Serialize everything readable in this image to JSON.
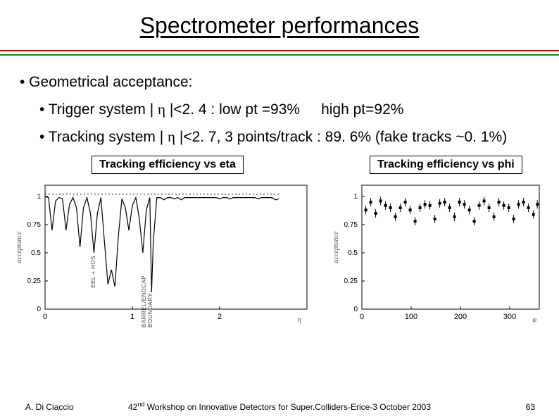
{
  "title": "Spectrometer performances",
  "bullets": {
    "lvl1": "• Geometrical acceptance:",
    "lvl2a_pre": "• Trigger system | ",
    "lvl2a_eta": "η",
    "lvl2a_mid": " |<2. 4   :  low pt =93%",
    "lvl2a_high": "high pt=92%",
    "lvl2b_pre": "• Tracking system | ",
    "lvl2b_eta": "η",
    "lvl2b_post": " |<2. 7,  3 points/track  :  89. 6%  (fake tracks ~0. 1%)"
  },
  "caption_left": "Tracking efficiency vs eta",
  "caption_right": "Tracking efficiency vs phi",
  "chart_left": {
    "type": "line",
    "ylabel_rot": "acceptance",
    "xaxis_label": "η",
    "xlim": [
      0,
      3
    ],
    "ylim": [
      0,
      1.1
    ],
    "yticks": [
      0,
      0.25,
      0.5,
      0.75,
      1
    ],
    "xticks": [
      0,
      1,
      2
    ],
    "annot1": "EEL + HOS",
    "annot2": "BARREL/ENDCAP BOUNDARY",
    "series_color": "#000000",
    "series_top_dashed": true,
    "background_color": "#ffffff",
    "data_solid": [
      [
        0.0,
        1.0
      ],
      [
        0.04,
        0.99
      ],
      [
        0.08,
        0.7
      ],
      [
        0.12,
        0.96
      ],
      [
        0.16,
        0.99
      ],
      [
        0.2,
        0.98
      ],
      [
        0.24,
        0.7
      ],
      [
        0.28,
        0.93
      ],
      [
        0.32,
        0.99
      ],
      [
        0.36,
        0.9
      ],
      [
        0.4,
        0.55
      ],
      [
        0.44,
        0.9
      ],
      [
        0.48,
        0.99
      ],
      [
        0.52,
        0.85
      ],
      [
        0.56,
        0.5
      ],
      [
        0.6,
        0.85
      ],
      [
        0.64,
        0.99
      ],
      [
        0.68,
        0.6
      ],
      [
        0.72,
        0.22
      ],
      [
        0.76,
        0.35
      ],
      [
        0.8,
        0.2
      ],
      [
        0.84,
        0.65
      ],
      [
        0.88,
        0.98
      ],
      [
        0.92,
        0.9
      ],
      [
        0.96,
        0.7
      ],
      [
        1.0,
        0.92
      ],
      [
        1.04,
        0.99
      ],
      [
        1.08,
        0.8
      ],
      [
        1.12,
        0.5
      ],
      [
        1.16,
        0.88
      ],
      [
        1.2,
        0.99
      ],
      [
        1.22,
        0.15
      ],
      [
        1.24,
        0.6
      ],
      [
        1.28,
        0.99
      ],
      [
        1.32,
        0.99
      ],
      [
        1.36,
        0.97
      ],
      [
        1.4,
        0.99
      ],
      [
        1.44,
        0.99
      ],
      [
        1.48,
        0.98
      ],
      [
        1.52,
        0.99
      ],
      [
        1.56,
        0.97
      ],
      [
        1.6,
        0.99
      ],
      [
        1.64,
        0.99
      ],
      [
        1.68,
        0.99
      ],
      [
        1.72,
        0.99
      ],
      [
        1.76,
        0.99
      ],
      [
        1.8,
        0.99
      ],
      [
        1.84,
        0.99
      ],
      [
        1.88,
        0.99
      ],
      [
        1.92,
        0.99
      ],
      [
        1.96,
        0.99
      ],
      [
        2.0,
        0.98
      ],
      [
        2.04,
        0.99
      ],
      [
        2.08,
        0.99
      ],
      [
        2.12,
        0.98
      ],
      [
        2.16,
        0.99
      ],
      [
        2.2,
        0.99
      ],
      [
        2.24,
        0.99
      ],
      [
        2.28,
        0.99
      ],
      [
        2.32,
        0.99
      ],
      [
        2.36,
        0.99
      ],
      [
        2.4,
        0.99
      ],
      [
        2.44,
        0.98
      ],
      [
        2.48,
        0.99
      ],
      [
        2.52,
        0.99
      ],
      [
        2.56,
        0.99
      ],
      [
        2.6,
        0.99
      ],
      [
        2.64,
        0.97
      ],
      [
        2.68,
        0.98
      ]
    ],
    "data_dotted_y": 1.02
  },
  "chart_right": {
    "type": "scatter",
    "ylabel_rot": "acceptance",
    "xaxis_label": "φ",
    "xlim": [
      0,
      360
    ],
    "ylim": [
      0,
      1.1
    ],
    "yticks": [
      0,
      0.25,
      0.5,
      0.75,
      1
    ],
    "xticks": [
      0,
      100,
      200,
      300
    ],
    "marker_color": "#000000",
    "background_color": "#ffffff",
    "points": [
      [
        8,
        0.88
      ],
      [
        18,
        0.95
      ],
      [
        28,
        0.85
      ],
      [
        38,
        0.96
      ],
      [
        48,
        0.92
      ],
      [
        58,
        0.9
      ],
      [
        68,
        0.82
      ],
      [
        78,
        0.9
      ],
      [
        88,
        0.95
      ],
      [
        98,
        0.88
      ],
      [
        108,
        0.78
      ],
      [
        118,
        0.9
      ],
      [
        128,
        0.93
      ],
      [
        138,
        0.92
      ],
      [
        148,
        0.8
      ],
      [
        158,
        0.94
      ],
      [
        168,
        0.95
      ],
      [
        178,
        0.9
      ],
      [
        188,
        0.82
      ],
      [
        198,
        0.95
      ],
      [
        208,
        0.93
      ],
      [
        218,
        0.88
      ],
      [
        228,
        0.78
      ],
      [
        238,
        0.92
      ],
      [
        248,
        0.96
      ],
      [
        258,
        0.9
      ],
      [
        268,
        0.82
      ],
      [
        278,
        0.95
      ],
      [
        288,
        0.92
      ],
      [
        298,
        0.9
      ],
      [
        308,
        0.8
      ],
      [
        318,
        0.93
      ],
      [
        328,
        0.95
      ],
      [
        338,
        0.9
      ],
      [
        348,
        0.84
      ],
      [
        356,
        0.93
      ]
    ]
  },
  "footer": {
    "author": "A. Di Ciaccio",
    "mid_pre": "42",
    "mid_sup": "nd",
    "mid_post": " Workshop on Innovative Detectors for Super.Colliders-Erice-3 October 2003",
    "page": "63"
  }
}
